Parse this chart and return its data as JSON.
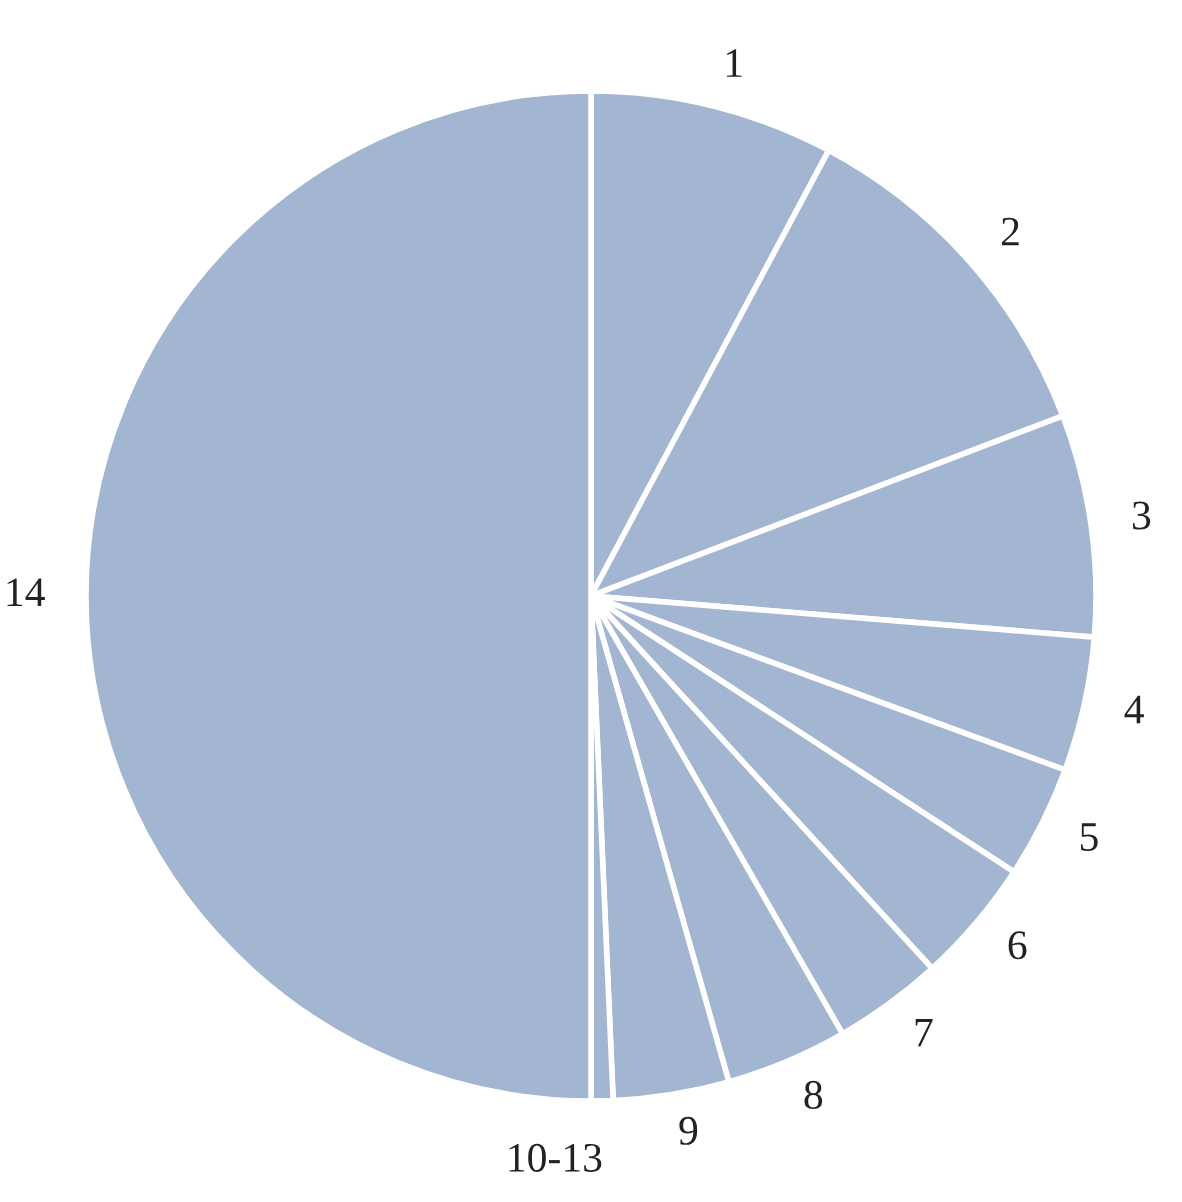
{
  "chart_data": {
    "type": "pie",
    "categories": [
      "1",
      "2",
      "3",
      "4",
      "5",
      "6",
      "7",
      "8",
      "9",
      "10-13",
      "14"
    ],
    "values": [
      7.8,
      11.4,
      7.1,
      4.3,
      3.6,
      4.0,
      3.5,
      3.9,
      3.7,
      0.7,
      50
    ],
    "colors": [
      "#a3b6d1",
      "#a3b6d1",
      "#a3b6d1",
      "#a3b6d1",
      "#a3b6d1",
      "#a3b6d1",
      "#a3b6d1",
      "#a3b6d1",
      "#a3b6d1",
      "#a3b6d1",
      "#a3b6d1"
    ]
  }
}
